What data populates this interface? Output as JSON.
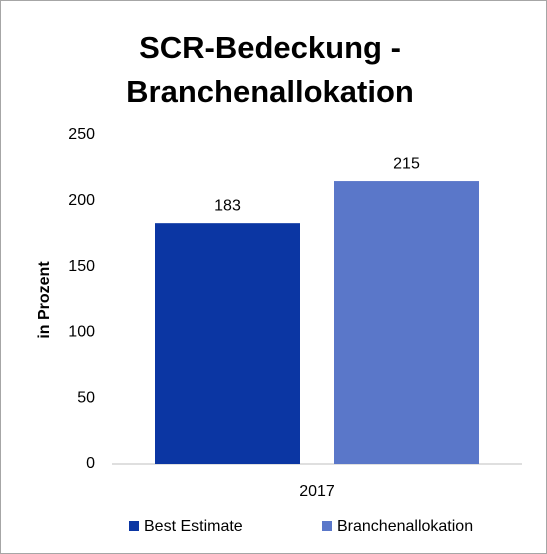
{
  "chart_data": {
    "type": "bar",
    "title": "SCR-Bedeckung - Branchenallokation",
    "y_label": "in Prozent",
    "categories": [
      "2017"
    ],
    "series": [
      {
        "name": "Best Estimate",
        "color": "#0b36a3",
        "values": [
          183
        ]
      },
      {
        "name": "Branchenallokation",
        "color": "#5a77c9",
        "values": [
          215
        ]
      }
    ],
    "ylim": [
      0,
      250
    ],
    "yticks": [
      0,
      50,
      100,
      150,
      200,
      250
    ],
    "grid": false,
    "legend": "bottom"
  }
}
